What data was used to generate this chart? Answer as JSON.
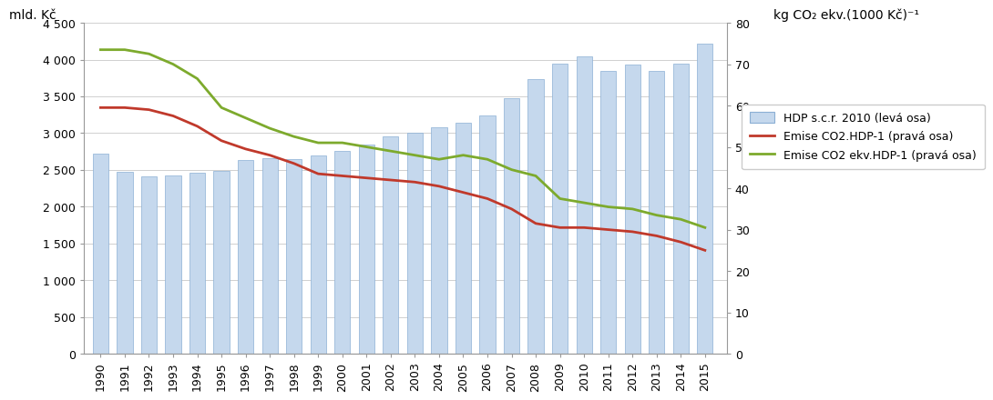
{
  "years": [
    1990,
    1991,
    1992,
    1993,
    1994,
    1995,
    1996,
    1997,
    1998,
    1999,
    2000,
    2001,
    2002,
    2003,
    2004,
    2005,
    2006,
    2007,
    2008,
    2009,
    2010,
    2011,
    2012,
    2013,
    2014,
    2015
  ],
  "gdp": [
    2720,
    2470,
    2410,
    2430,
    2460,
    2490,
    2630,
    2660,
    2650,
    2700,
    2760,
    2850,
    2960,
    3000,
    3080,
    3140,
    3240,
    3480,
    3730,
    3940,
    4040,
    3840,
    3930,
    3850,
    3950,
    4220
  ],
  "emise_co2": [
    59.5,
    59.5,
    59.0,
    57.5,
    55.0,
    51.5,
    49.5,
    48.0,
    46.0,
    43.5,
    43.0,
    42.5,
    42.0,
    41.5,
    40.5,
    39.0,
    37.5,
    35.0,
    31.5,
    30.5,
    30.5,
    30.0,
    29.5,
    28.5,
    27.0,
    25.0
  ],
  "emise_co2_ekv": [
    73.5,
    73.5,
    72.5,
    70.0,
    66.5,
    59.5,
    57.0,
    54.5,
    52.5,
    51.0,
    51.0,
    50.0,
    49.0,
    48.0,
    47.0,
    48.0,
    47.0,
    44.5,
    43.0,
    37.5,
    36.5,
    35.5,
    35.0,
    33.5,
    32.5,
    30.5
  ],
  "bar_color": "#c5d8ed",
  "bar_edge_color": "#8bafd4",
  "line_co2_color": "#c0392b",
  "line_co2ekv_color": "#7daa2d",
  "ylabel_left": "mld. Kč",
  "ylabel_right": "kg CO₂ ekv.(1000 Kč)⁻¹",
  "legend_hdp": "HDP s.c.r. 2010 (levá osa)",
  "legend_co2": "Emise CO2.HDP-1 (pravá osa)",
  "legend_co2ekv": "Emise CO2 ekv.HDP-1 (pravá osa)",
  "ylim_left": [
    0,
    4500
  ],
  "ylim_right": [
    0,
    80
  ],
  "yticks_left": [
    0,
    500,
    1000,
    1500,
    2000,
    2500,
    3000,
    3500,
    4000,
    4500
  ],
  "ytick_labels_left": [
    "0",
    "500",
    "1 000",
    "1 500",
    "2 000",
    "2 500",
    "3 000",
    "3 500",
    "4 000",
    "4 500"
  ],
  "yticks_right": [
    0,
    10,
    20,
    30,
    40,
    50,
    60,
    70,
    80
  ],
  "background_color": "#ffffff",
  "grid_color": "#d0d0d0"
}
